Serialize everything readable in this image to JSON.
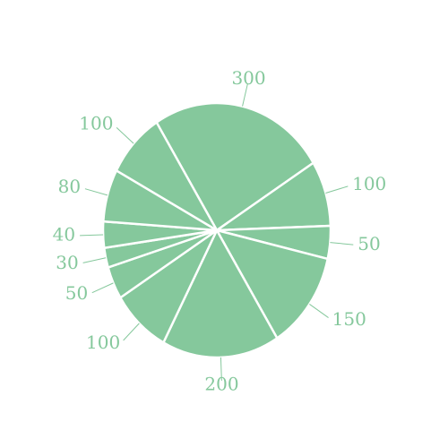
{
  "chart_data": {
    "type": "pie",
    "values": [
      300,
      100,
      50,
      150,
      200,
      100,
      50,
      30,
      40,
      80,
      100
    ],
    "labels": [
      "300",
      "100",
      "50",
      "150",
      "200",
      "100",
      "50",
      "30",
      "40",
      "80",
      "100"
    ],
    "color": "#85c89c",
    "separator_color": "#ffffff",
    "label_color": "#85c89c",
    "legend": "none"
  }
}
